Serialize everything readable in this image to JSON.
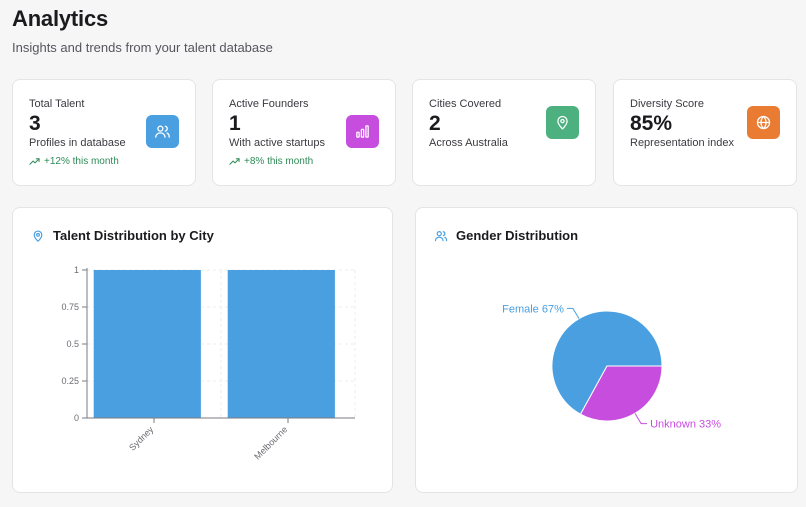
{
  "header": {
    "title": "Analytics",
    "subtitle": "Insights and trends from your talent database"
  },
  "stats": [
    {
      "label": "Total Talent",
      "value": "3",
      "sub": "Profiles in database",
      "trend": "+12% this month",
      "icon": "users-icon",
      "color": "#4a9fe0"
    },
    {
      "label": "Active Founders",
      "value": "1",
      "sub": "With active startups",
      "trend": "+8% this month",
      "icon": "bar-chart-icon",
      "color": "#c74ddf"
    },
    {
      "label": "Cities Covered",
      "value": "2",
      "sub": "Across Australia",
      "trend": "",
      "icon": "map-pin-icon",
      "color": "#4cb07f"
    },
    {
      "label": "Diversity Score",
      "value": "85%",
      "sub": "Representation index",
      "trend": "",
      "icon": "globe-icon",
      "color": "#e97b32"
    }
  ],
  "city_panel": {
    "title": "Talent Distribution by City",
    "icon": "map-pin-icon"
  },
  "gender_panel": {
    "title": "Gender Distribution",
    "icon": "users-icon"
  },
  "colors": {
    "bar": "#4a9fe0",
    "female": "#4a9fe0",
    "unknown": "#c74ddf",
    "trend": "#2e8a57"
  },
  "chart_data": [
    {
      "type": "bar",
      "title": "Talent Distribution by City",
      "categories": [
        "Sydney",
        "Melbourne"
      ],
      "values": [
        1,
        1
      ],
      "ylim": [
        0,
        1
      ],
      "yticks": [
        "0",
        "0.25",
        "0.5",
        "0.75",
        "1"
      ],
      "ytick_values": [
        0,
        0.25,
        0.5,
        0.75,
        1
      ],
      "grid": true
    },
    {
      "type": "pie",
      "title": "Gender Distribution",
      "slices": [
        {
          "label": "Female 67%",
          "value": 67,
          "color": "#4a9fe0"
        },
        {
          "label": "Unknown 33%",
          "value": 33,
          "color": "#c74ddf"
        }
      ]
    }
  ]
}
